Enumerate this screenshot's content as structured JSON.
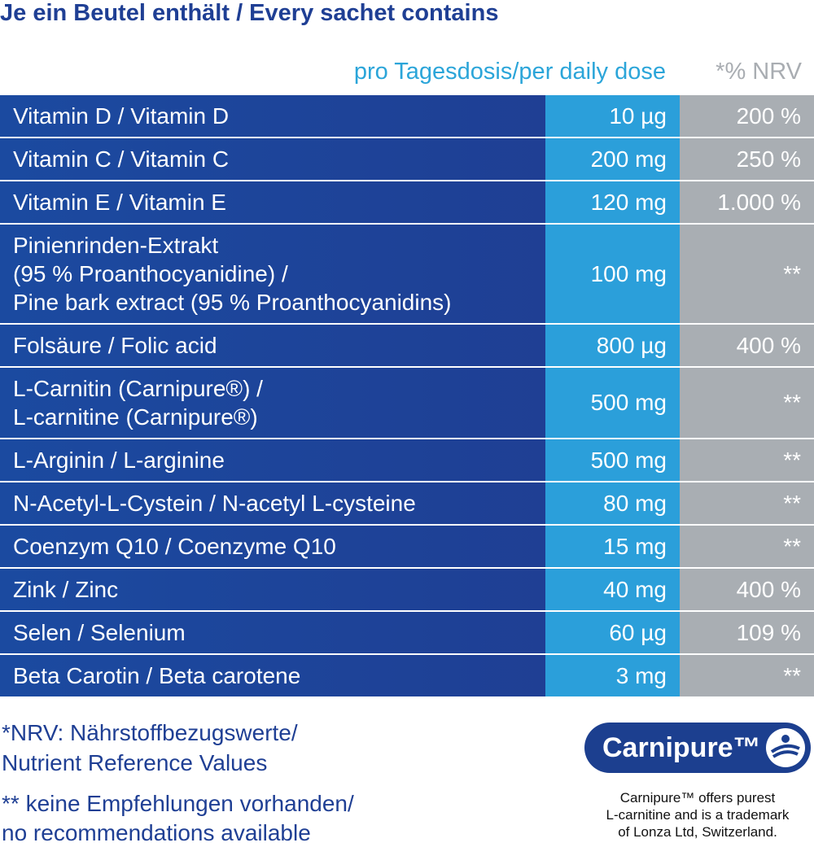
{
  "title": "Je ein Beutel enthält / Every sachet contains",
  "header": {
    "amount": "pro Tagesdosis/per daily dose",
    "nrv": "*% NRV"
  },
  "table": {
    "rows": [
      {
        "name": [
          "Vitamin D / Vitamin D"
        ],
        "amount": "10 µg",
        "nrv": "200 %"
      },
      {
        "name": [
          "Vitamin C / Vitamin C"
        ],
        "amount": "200 mg",
        "nrv": "250 %"
      },
      {
        "name": [
          "Vitamin E / Vitamin E"
        ],
        "amount": "120 mg",
        "nrv": "1.000 %"
      },
      {
        "name": [
          "Pinienrinden-Extrakt",
          "(95 % Proanthocyanidine) /",
          "Pine bark extract (95 % Proanthocyanidins)"
        ],
        "amount": "100 mg",
        "nrv": "**"
      },
      {
        "name": [
          "Folsäure / Folic acid"
        ],
        "amount": "800 µg",
        "nrv": "400 %"
      },
      {
        "name": [
          "L-Carnitin (Carnipure®) /",
          "L-carnitine (Carnipure®)"
        ],
        "amount": "500 mg",
        "nrv": "**"
      },
      {
        "name": [
          "L-Arginin / L-arginine"
        ],
        "amount": "500 mg",
        "nrv": "**"
      },
      {
        "name": [
          "N-Acetyl-L-Cystein / N-acetyl L-cysteine"
        ],
        "amount": "80 mg",
        "nrv": "**"
      },
      {
        "name": [
          "Coenzym Q10 / Coenzyme Q10"
        ],
        "amount": "15 mg",
        "nrv": "**"
      },
      {
        "name": [
          "Zink / Zinc"
        ],
        "amount": "40 mg",
        "nrv": "400 %"
      },
      {
        "name": [
          "Selen / Selenium"
        ],
        "amount": "60 µg",
        "nrv": "109 %"
      },
      {
        "name": [
          "Beta Carotin / Beta carotene"
        ],
        "amount": "3 mg",
        "nrv": "**"
      }
    ]
  },
  "footnotes": [
    "*NRV: Nährstoffbezugswerte/",
    "Nutrient Reference Values",
    "** keine Empfehlungen vorhanden/",
    "no recommendations available"
  ],
  "logo": {
    "text": "Carnipure™",
    "caption": [
      "Carnipure™ offers purest",
      "L-carnitine and is a trademark",
      "of Lonza Ltd, Switzerland."
    ]
  }
}
